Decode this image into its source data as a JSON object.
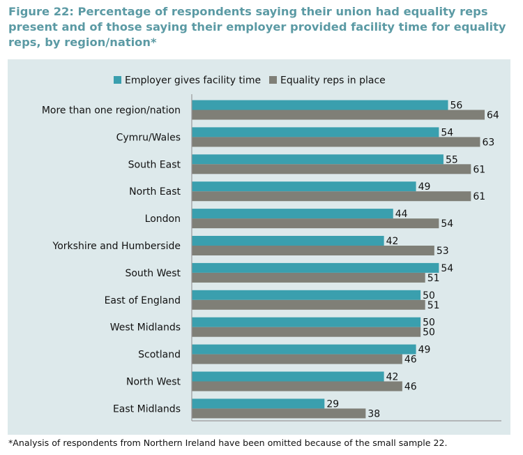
{
  "figure": {
    "title": "Figure 22: Percentage of respondents saying their union had equality reps present and of those saying their employer provided facility time for equality reps, by region/nation*",
    "footnote": "*Analysis of respondents from Northern Ireland have been omitted because of the small sample 22."
  },
  "colors": {
    "facility_time": "#3a9fae",
    "equality_reps": "#7f7f77",
    "panel_background": "#dde9eb",
    "title": "#5b9aa4"
  },
  "chart_data": {
    "type": "bar",
    "orientation": "horizontal",
    "title": "Figure 22: Percentage of respondents saying their union had equality reps present and of those saying their employer provided facility time for equality reps, by region/nation*",
    "categories": [
      "More than one region/nation",
      "Cymru/Wales",
      "South East",
      "North East",
      "London",
      "Yorkshire and Humberside",
      "South West",
      "East of England",
      "West Midlands",
      "Scotland",
      "North West",
      "East Midlands"
    ],
    "series": [
      {
        "name": "Employer gives facility time",
        "color": "#3a9fae",
        "values": [
          56,
          54,
          55,
          49,
          44,
          42,
          54,
          50,
          50,
          49,
          42,
          29
        ]
      },
      {
        "name": "Equality reps in place",
        "color": "#7f7f77",
        "values": [
          64,
          63,
          61,
          61,
          54,
          53,
          51,
          51,
          50,
          46,
          46,
          38
        ]
      }
    ],
    "xlim": [
      0,
      64
    ],
    "data_labels": true,
    "grid": false,
    "legend_position": "top"
  }
}
